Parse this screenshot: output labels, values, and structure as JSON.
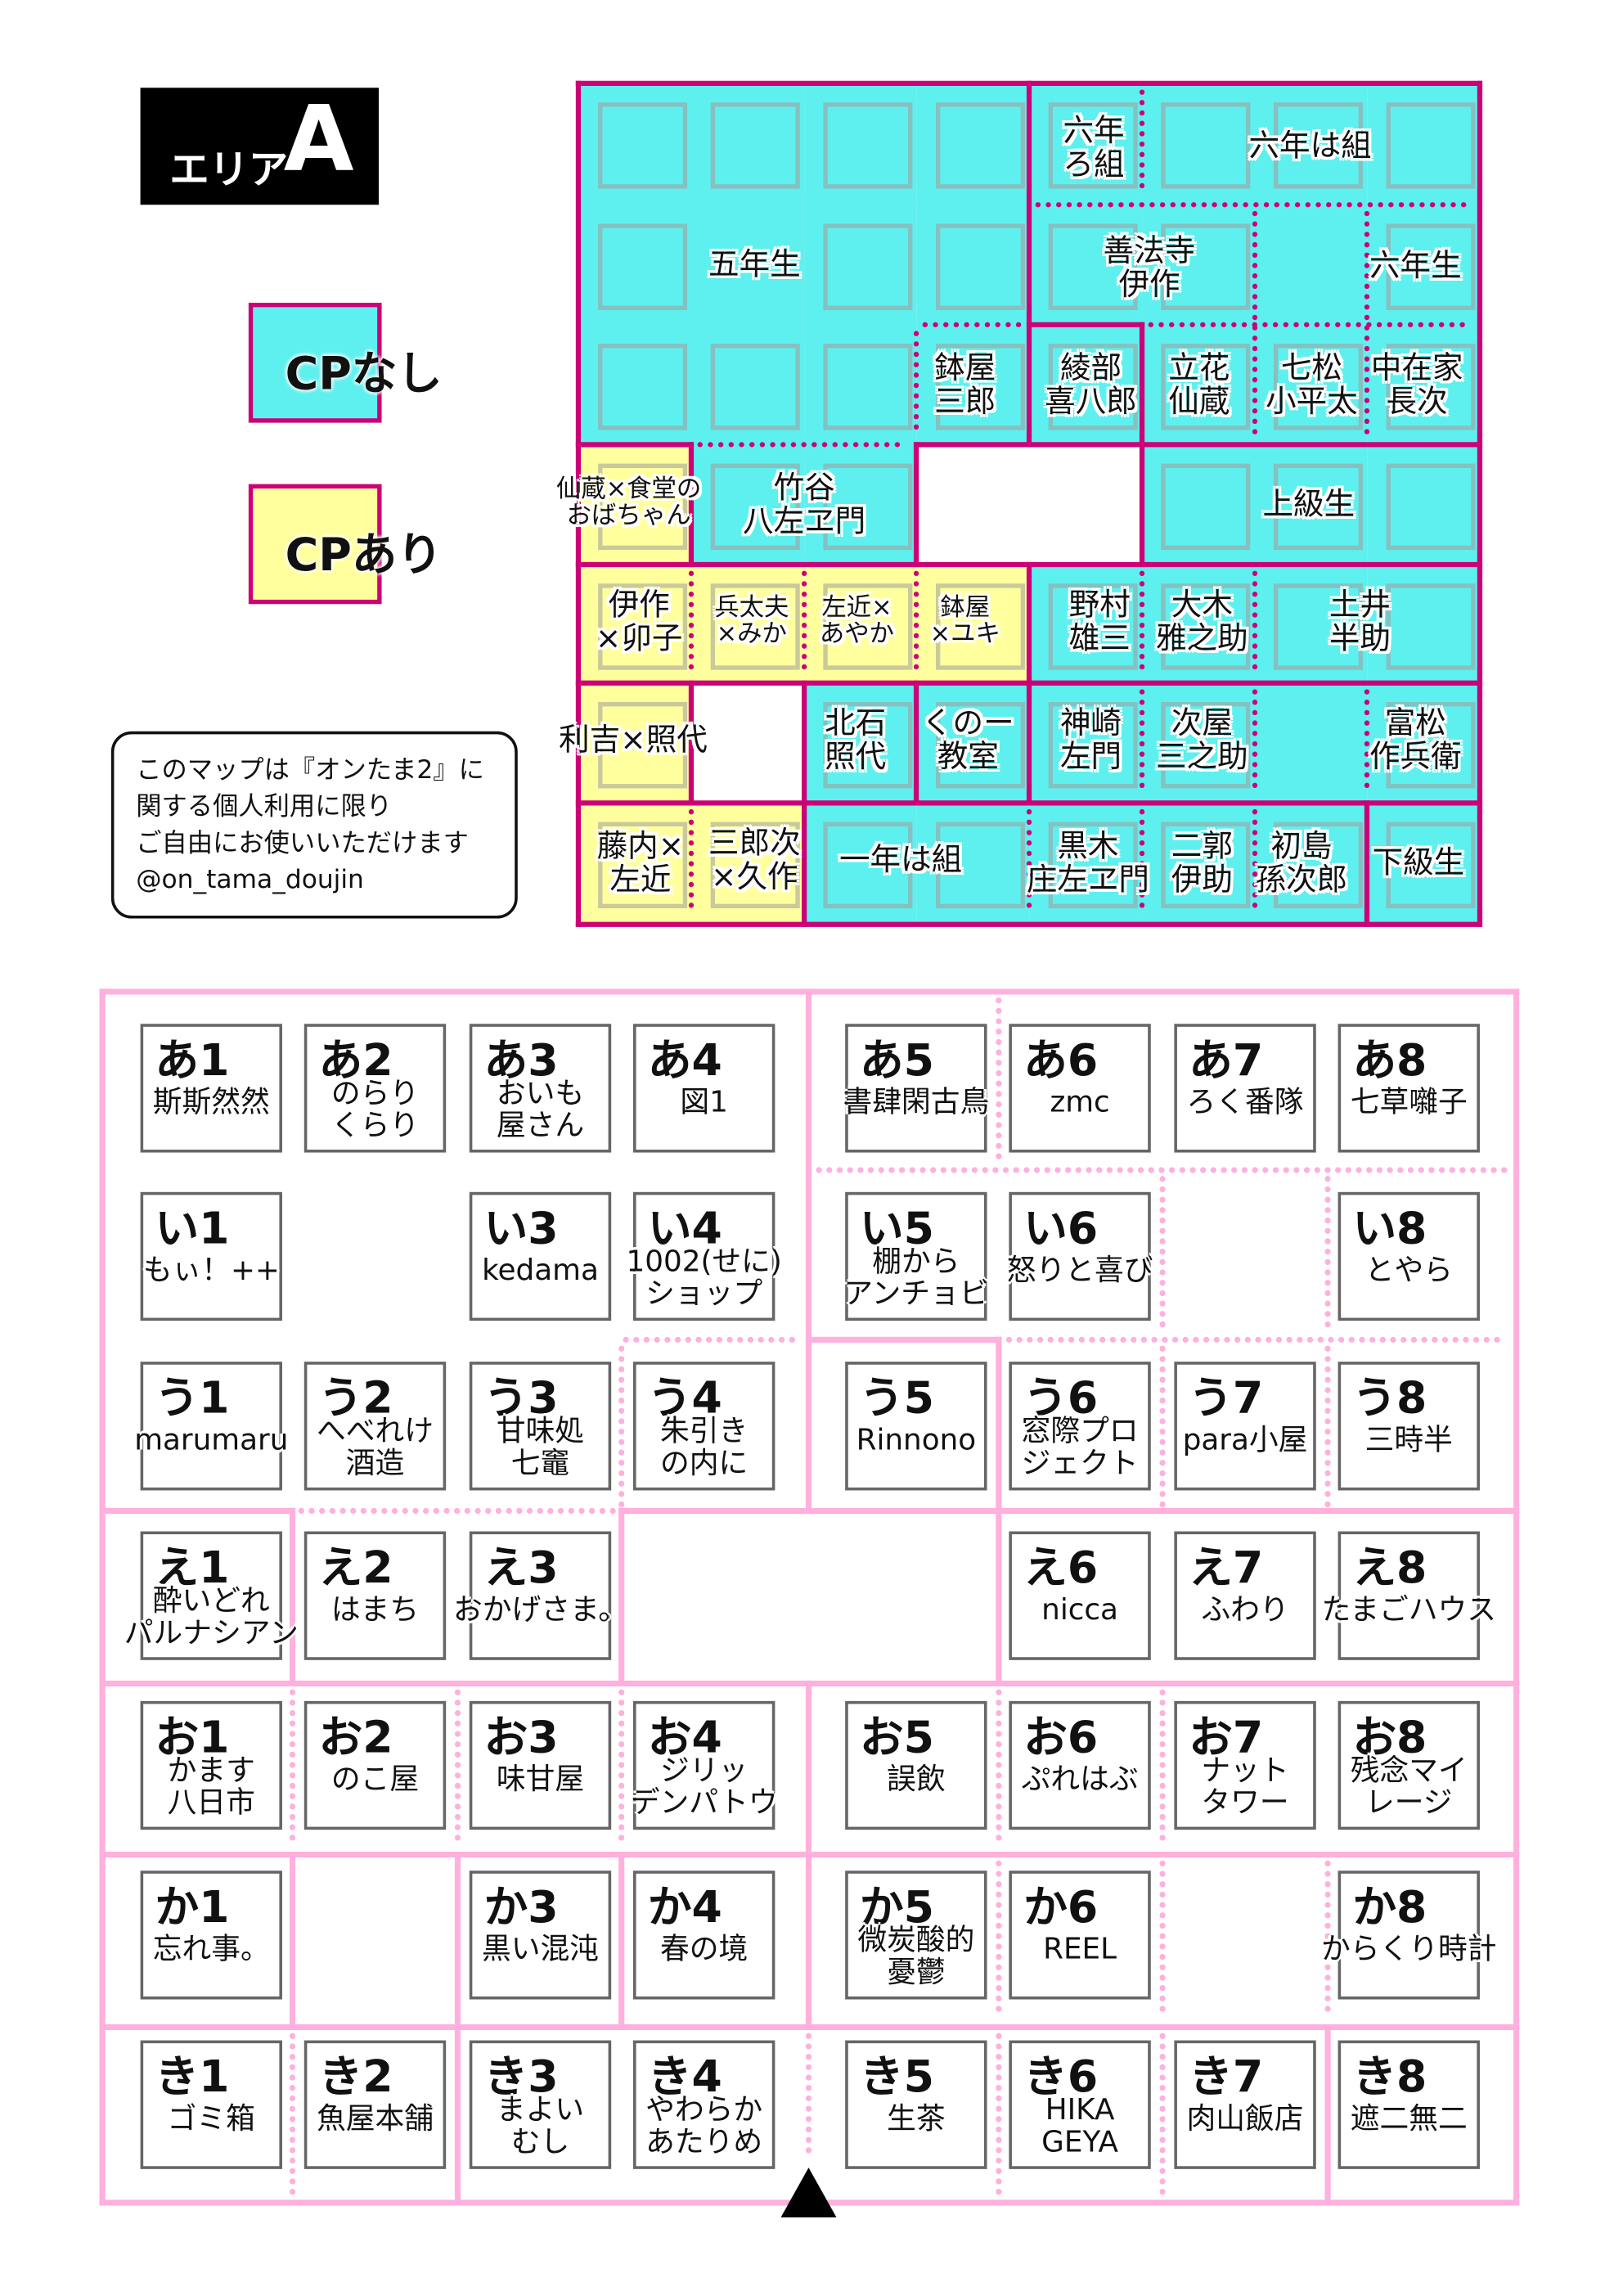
{
  "colors": {
    "no_cp": "#5ef0ee",
    "cp": "#ffff9e",
    "top_border": "#cc0077",
    "bottom_border": "#ffb0dd",
    "slot": "#86c0c0"
  },
  "legend": {
    "area_title": "エリア",
    "area_letter": "A",
    "no_cp": "CPなし",
    "cp": "CPあり"
  },
  "note": {
    "text": "このマップは『オンたま2』に\n関する個人利用に限り\nご自由にお使いいただけます\n@on_tama_doujin"
  },
  "top_map": {
    "labels": [
      "五年生",
      "鉢屋\n三郎",
      "竹谷\n八左ヱ門",
      "仙蔵×食堂の\nおばちゃん",
      "六年\nろ組",
      "六年は組",
      "善法寺\n伊作",
      "六年生",
      "綾部\n喜八郎",
      "立花\n仙蔵",
      "七松\n小平太",
      "中在家\n長次",
      "上級生",
      "伊作\n×卯子",
      "兵太夫\n×みか",
      "左近×\nあやか",
      "鉢屋\n×ユキ",
      "野村\n雄三",
      "大木\n雅之助",
      "土井\n半助",
      "利吉×照代",
      "北石\n照代",
      "くのー\n教室",
      "神崎\n左門",
      "次屋\n三之助",
      "富松\n作兵衛",
      "藤内×\n左近",
      "三郎次\n×久作",
      "一年は組",
      "黒木\n庄左ヱ門",
      "二郭\n伊助",
      "初島\n孫次郎",
      "下級生"
    ]
  },
  "booths": [
    {
      "id": "あ1",
      "name": "斯斯然然"
    },
    {
      "id": "あ2",
      "name": "のらり\nくらり"
    },
    {
      "id": "あ3",
      "name": "おいも\n屋さん"
    },
    {
      "id": "あ4",
      "name": "図1"
    },
    {
      "id": "あ5",
      "name": "書肆閑古鳥"
    },
    {
      "id": "あ6",
      "name": "zmc"
    },
    {
      "id": "あ7",
      "name": "ろく番隊"
    },
    {
      "id": "あ8",
      "name": "七草囃子"
    },
    {
      "id": "い1",
      "name": "もぃ！++"
    },
    {
      "id": "い3",
      "name": "kedama"
    },
    {
      "id": "い4",
      "name": "1002(せに)\nショップ"
    },
    {
      "id": "い5",
      "name": "棚から\nアンチョビ"
    },
    {
      "id": "い6",
      "name": "怒りと喜び"
    },
    {
      "id": "い8",
      "name": "とやら"
    },
    {
      "id": "う1",
      "name": "marumaru"
    },
    {
      "id": "う2",
      "name": "へべれけ\n酒造"
    },
    {
      "id": "う3",
      "name": "甘味処\n七竈"
    },
    {
      "id": "う4",
      "name": "朱引き\nの内に"
    },
    {
      "id": "う5",
      "name": "Rinnono"
    },
    {
      "id": "う6",
      "name": "窓際プロ\nジェクト"
    },
    {
      "id": "う7",
      "name": "para小屋"
    },
    {
      "id": "う8",
      "name": "三時半"
    },
    {
      "id": "え1",
      "name": "酔いどれ\nパルナシアン"
    },
    {
      "id": "え2",
      "name": "はまち"
    },
    {
      "id": "え3",
      "name": "おかげさま。"
    },
    {
      "id": "え6",
      "name": "nicca"
    },
    {
      "id": "え7",
      "name": "ふわり"
    },
    {
      "id": "え8",
      "name": "たまごハウス"
    },
    {
      "id": "お1",
      "name": "かます\n八日市"
    },
    {
      "id": "お2",
      "name": "のこ屋"
    },
    {
      "id": "お3",
      "name": "味甘屋"
    },
    {
      "id": "お4",
      "name": "ジリッ\nデンパトウ"
    },
    {
      "id": "お5",
      "name": "誤飲"
    },
    {
      "id": "お6",
      "name": "ぷれはぶ"
    },
    {
      "id": "お7",
      "name": "ナット\nタワー"
    },
    {
      "id": "お8",
      "name": "残念マイ\nレージ"
    },
    {
      "id": "か1",
      "name": "忘れ事。"
    },
    {
      "id": "か3",
      "name": "黒い混沌"
    },
    {
      "id": "か4",
      "name": "春の境"
    },
    {
      "id": "か5",
      "name": "微炭酸的\n憂鬱"
    },
    {
      "id": "か6",
      "name": "REEL"
    },
    {
      "id": "か8",
      "name": "からくり時計"
    },
    {
      "id": "き1",
      "name": "ゴミ箱"
    },
    {
      "id": "き2",
      "name": "魚屋本舗"
    },
    {
      "id": "き3",
      "name": "まよい\nむし"
    },
    {
      "id": "き4",
      "name": "やわらか\nあたりめ"
    },
    {
      "id": "き5",
      "name": "生茶"
    },
    {
      "id": "き6",
      "name": "HIKA\nGEYA"
    },
    {
      "id": "き7",
      "name": "肉山飯店"
    },
    {
      "id": "き8",
      "name": "遮二無二"
    }
  ],
  "entrance_marker": {
    "icon": "triangle-up-icon"
  }
}
